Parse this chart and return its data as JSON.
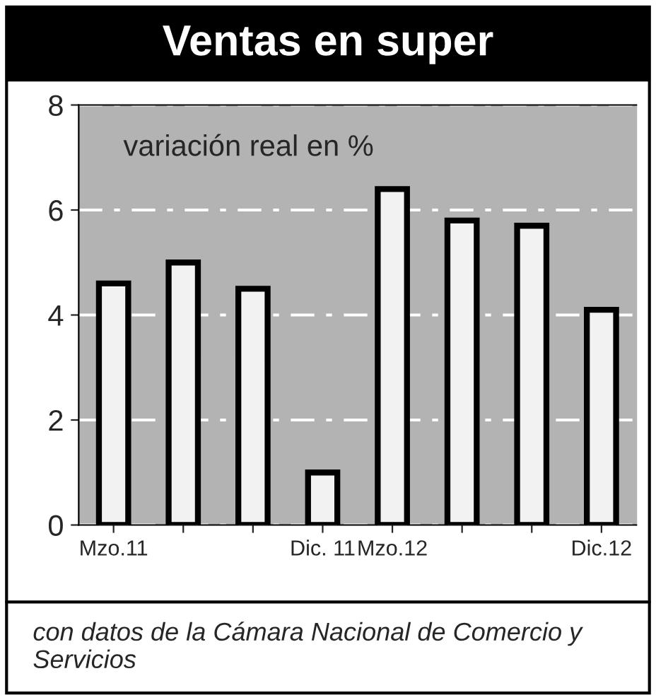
{
  "chart_data": {
    "type": "bar",
    "title": "Ventas en super",
    "categories": [
      "Mzo.11",
      null,
      null,
      "Dic. 11",
      "Mzo.12",
      null,
      null,
      "Dic.12"
    ],
    "series": [
      {
        "color": "#f2f2f2",
        "values": [
          4.6,
          5.0,
          4.5,
          1.0,
          6.4,
          5.8,
          5.7,
          4.1
        ]
      }
    ],
    "ylim": [
      0,
      8
    ],
    "yticks": [
      0,
      2,
      4,
      6,
      8
    ],
    "grid": "y",
    "line_style": "dashed",
    "annotations": [
      "variación real en %",
      "con datos de la Cámara Nacional de Comercio y Servicios"
    ]
  }
}
